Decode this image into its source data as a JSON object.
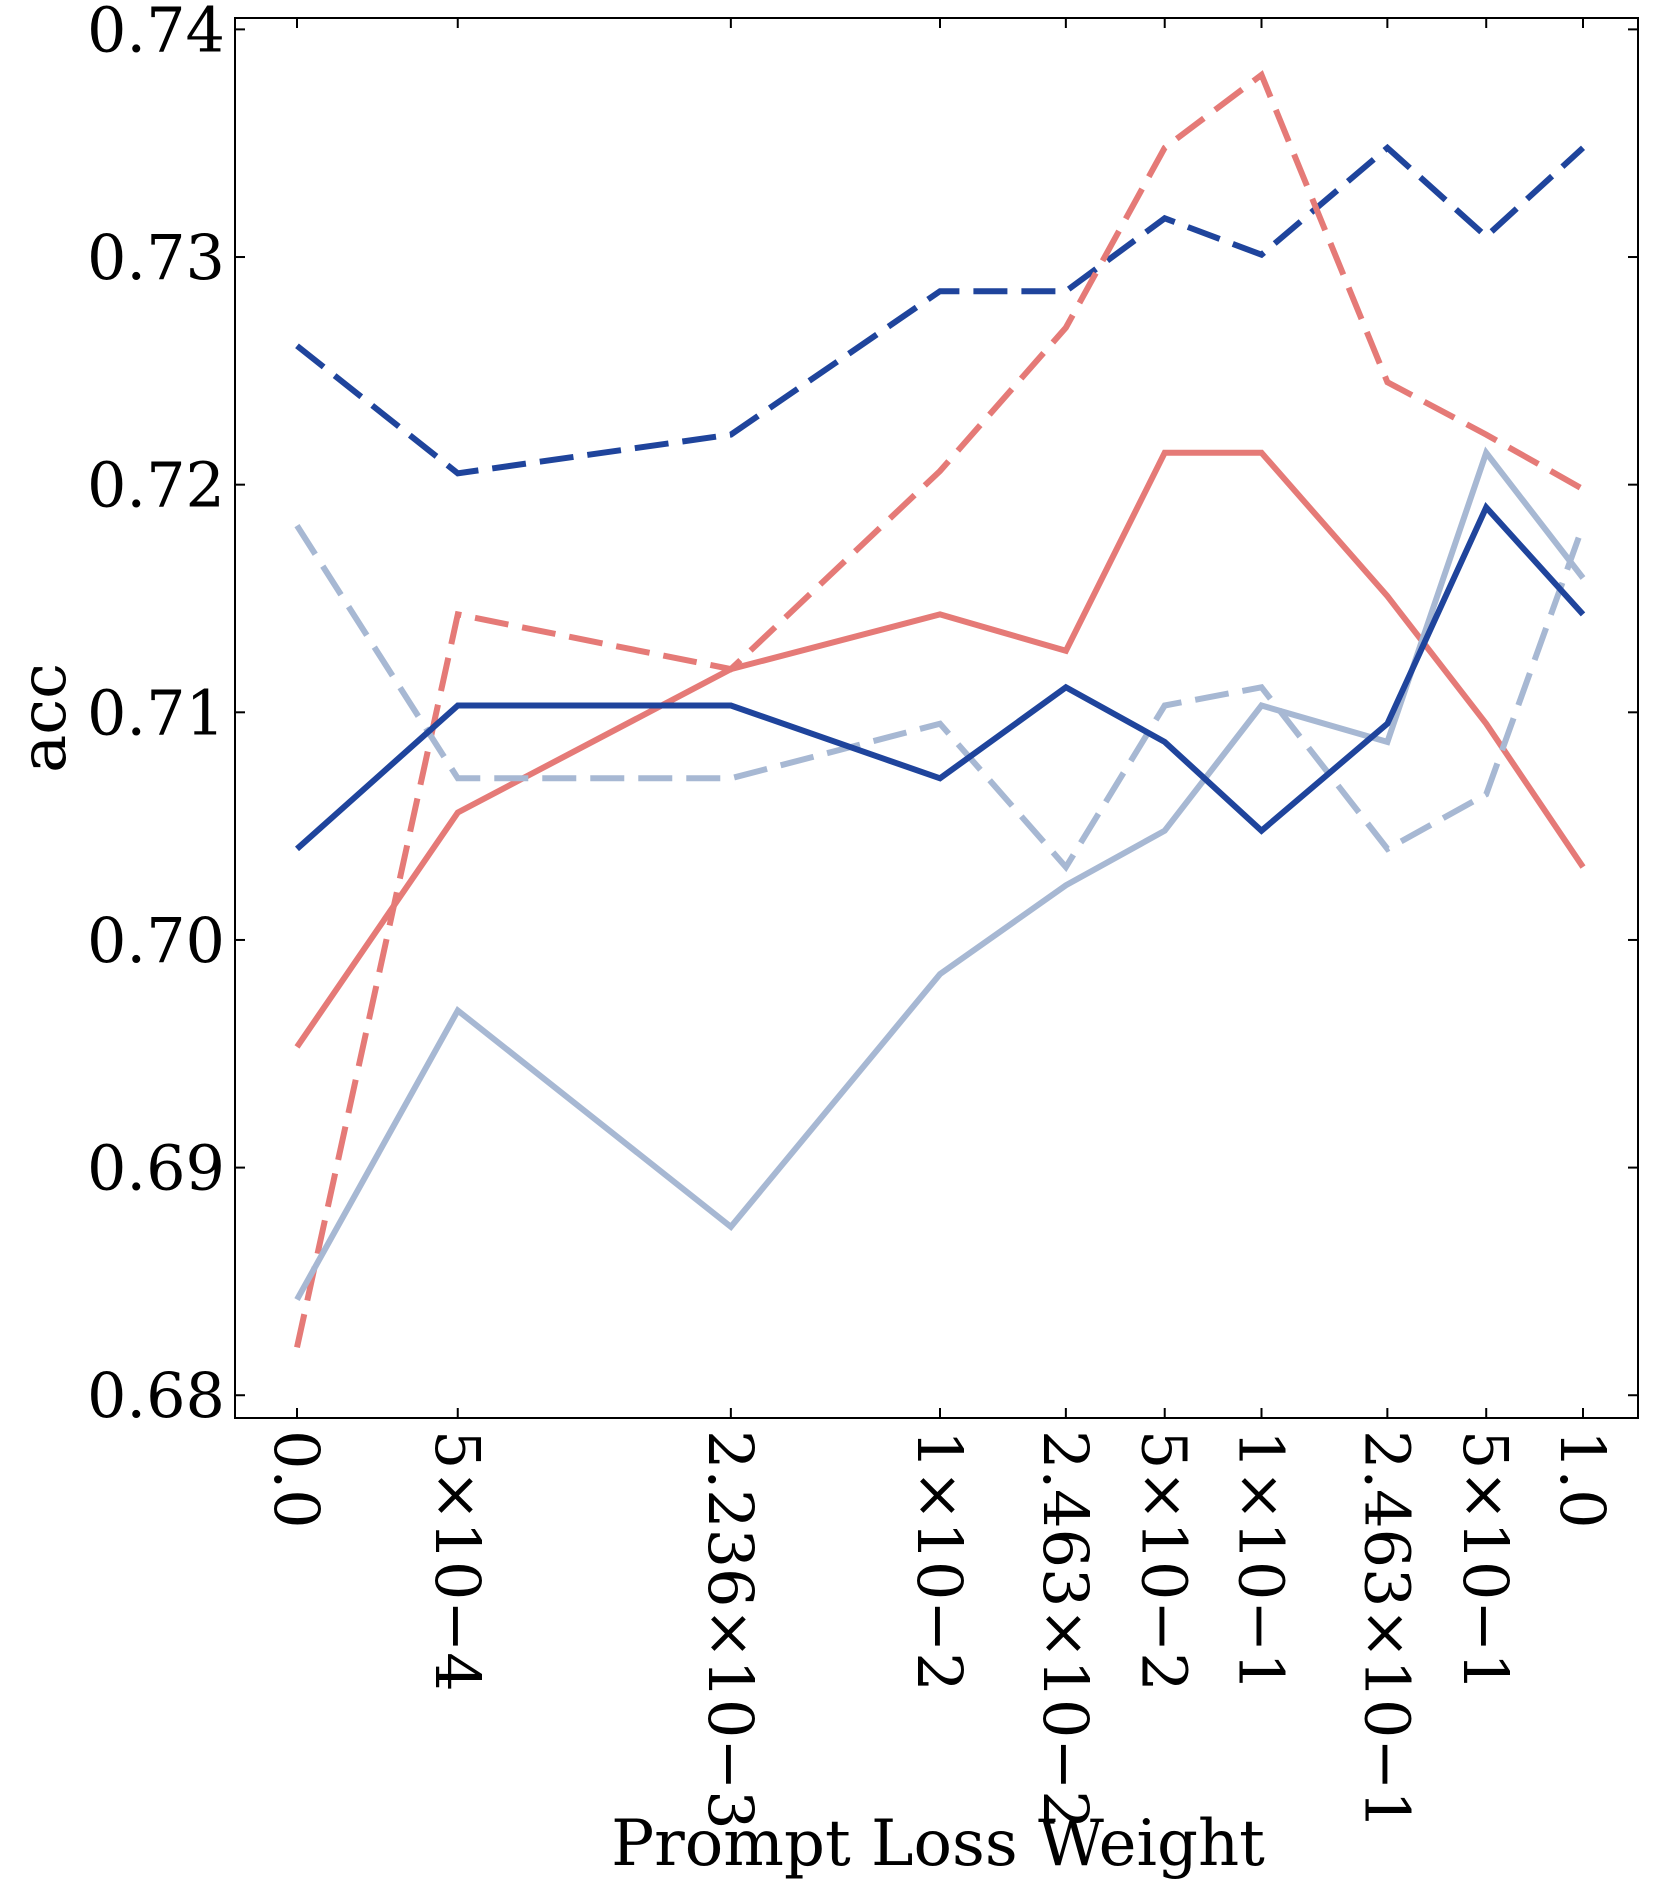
{
  "chart_data": {
    "type": "line",
    "title": "",
    "xlabel": "Prompt Loss Weight",
    "ylabel": "acc",
    "x_positions": [
      0.0,
      0.0005,
      0.002236,
      0.01,
      0.02463,
      0.05,
      0.1,
      0.2463,
      0.5,
      1.0
    ],
    "categories": [
      "0.0",
      "5×10−4",
      "2.236×10−3",
      "1×10−2",
      "2.463×10−2",
      "5×10−2",
      "1×10−1",
      "2.463×10−1",
      "5×10−1",
      "1.0"
    ],
    "x_scale": "symlog",
    "ylim": [
      0.679,
      0.7405
    ],
    "yticks": [
      "0.68",
      "0.69",
      "0.70",
      "0.71",
      "0.72",
      "0.73",
      "0.74"
    ],
    "ytick_values": [
      0.68,
      0.69,
      0.7,
      0.71,
      0.72,
      0.73,
      0.74
    ],
    "grid": false,
    "series": [
      {
        "name": "dark blue dashed",
        "color": "#1f449c",
        "dash": "dashed",
        "values": [
          0.7261,
          0.7205,
          0.7222,
          0.7285,
          0.7285,
          0.7317,
          0.7301,
          0.7348,
          0.7309,
          0.7348
        ]
      },
      {
        "name": "red dashed",
        "color": "#e57a77",
        "dash": "dashed",
        "values": [
          0.6821,
          0.7143,
          0.7119,
          0.7206,
          0.7269,
          0.7348,
          0.738,
          0.7245,
          0.7222,
          0.7198
        ]
      },
      {
        "name": "red solid",
        "color": "#e57a77",
        "dash": "solid",
        "values": [
          0.6953,
          0.7056,
          0.7119,
          0.7143,
          0.7127,
          0.7214,
          0.7214,
          0.7151,
          0.7095,
          0.7032
        ]
      },
      {
        "name": "light blue solid",
        "color": "#a7b8d3",
        "dash": "solid",
        "values": [
          0.6842,
          0.6969,
          0.6874,
          0.6985,
          0.7024,
          0.7048,
          0.7103,
          0.7087,
          0.7214,
          0.7159
        ]
      },
      {
        "name": "light blue dashed",
        "color": "#a7b8d3",
        "dash": "dashed",
        "values": [
          0.7182,
          0.7071,
          0.7071,
          0.7095,
          0.7032,
          0.7103,
          0.7111,
          0.704,
          0.7064,
          0.7182
        ]
      },
      {
        "name": "dark blue solid",
        "color": "#1f449c",
        "dash": "solid",
        "values": [
          0.704,
          0.7103,
          0.7103,
          0.7071,
          0.7111,
          0.7087,
          0.7048,
          0.7095,
          0.719,
          0.7143
        ]
      }
    ]
  }
}
